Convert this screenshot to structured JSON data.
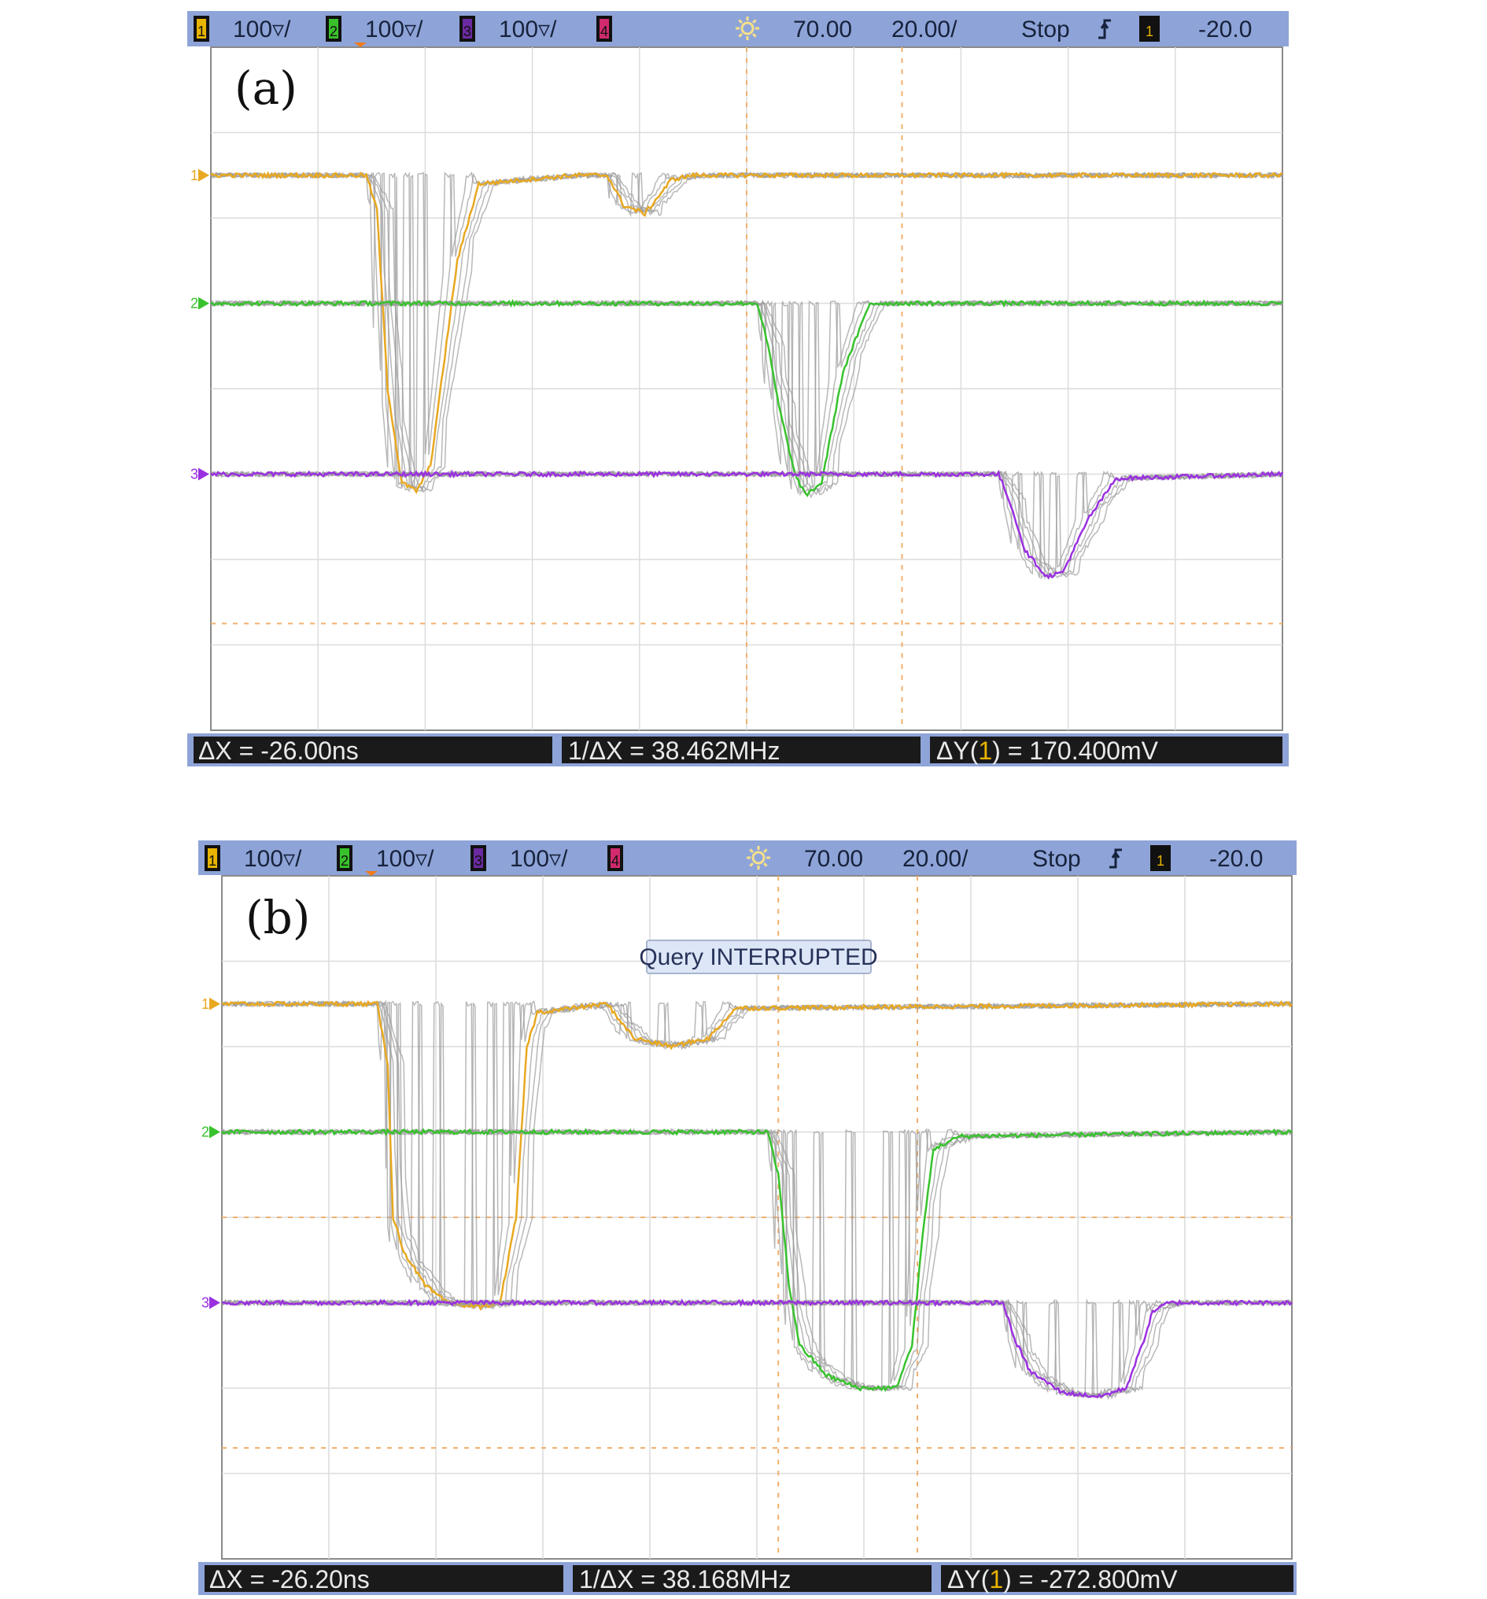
{
  "chart_data": [
    {
      "type": "line",
      "panel_label": "(a)",
      "status_bar": {
        "channels": [
          {
            "number": "1",
            "scale": "100▿/",
            "color": "#e8b400"
          },
          {
            "number": "2",
            "scale": "100▿/",
            "color": "#39c12b"
          },
          {
            "number": "3",
            "scale": "100▿/",
            "color": "#6b2aa1"
          },
          {
            "number": "4",
            "scale": "",
            "color": "#d12a6e"
          }
        ],
        "time_offset": "70.00",
        "time_scale": "20.00/",
        "run_state": "Stop",
        "trigger_channel": "1",
        "trigger_level": "-20.0"
      },
      "measurements": {
        "delta_x": "ΔX = -26.00ns",
        "inverse_delta_x": "1/ΔX = 38.462MHz",
        "delta_y_prefix": "ΔY(",
        "delta_y_channel": "1",
        "delta_y_suffix": ") = 170.400mV"
      },
      "xlim": [
        0,
        10
      ],
      "ylim": [
        -4,
        4
      ],
      "grid": true,
      "cursors": {
        "x": [
          5.0,
          6.45
        ],
        "y": [
          -2.75
        ]
      },
      "series": [
        {
          "channel": "1",
          "color": "#e8a820",
          "ghost_color": "#9a9a9a",
          "baseline": 2.5,
          "points": [
            [
              0,
              2.5
            ],
            [
              1.45,
              2.5
            ],
            [
              1.55,
              2.1
            ],
            [
              1.65,
              0.0
            ],
            [
              1.78,
              -1.1
            ],
            [
              1.92,
              -1.2
            ],
            [
              2.05,
              -0.9
            ],
            [
              2.3,
              1.5
            ],
            [
              2.5,
              2.4
            ],
            [
              3.4,
              2.5
            ],
            [
              3.7,
              2.5
            ],
            [
              3.85,
              2.15
            ],
            [
              4.05,
              2.05
            ],
            [
              4.3,
              2.45
            ],
            [
              4.5,
              2.5
            ],
            [
              10,
              2.5
            ]
          ]
        },
        {
          "channel": "2",
          "color": "#38c22d",
          "ghost_color": "#9a9a9a",
          "baseline": 1.0,
          "points": [
            [
              0,
              1.0
            ],
            [
              5.1,
              1.0
            ],
            [
              5.2,
              0.5
            ],
            [
              5.3,
              -0.2
            ],
            [
              5.45,
              -1.0
            ],
            [
              5.55,
              -1.25
            ],
            [
              5.7,
              -1.1
            ],
            [
              5.9,
              0.2
            ],
            [
              6.15,
              1.0
            ],
            [
              10,
              1.0
            ]
          ]
        },
        {
          "channel": "3",
          "color": "#9a30e0",
          "ghost_color": "#9a9a9a",
          "baseline": -1.0,
          "points": [
            [
              0,
              -1.0
            ],
            [
              7.35,
              -1.0
            ],
            [
              7.45,
              -1.3
            ],
            [
              7.6,
              -1.9
            ],
            [
              7.8,
              -2.2
            ],
            [
              7.95,
              -2.15
            ],
            [
              8.2,
              -1.5
            ],
            [
              8.45,
              -1.05
            ],
            [
              10,
              -1.0
            ]
          ]
        }
      ]
    },
    {
      "type": "line",
      "panel_label": "(b)",
      "status_bar": {
        "channels": [
          {
            "number": "1",
            "scale": "100▿/",
            "color": "#e8b400"
          },
          {
            "number": "2",
            "scale": "100▿/",
            "color": "#39c12b"
          },
          {
            "number": "3",
            "scale": "100▿/",
            "color": "#6b2aa1"
          },
          {
            "number": "4",
            "scale": "",
            "color": "#d12a6e"
          }
        ],
        "time_offset": "70.00",
        "time_scale": "20.00/",
        "run_state": "Stop",
        "trigger_channel": "1",
        "trigger_level": "-20.0"
      },
      "message": "Query INTERRUPTED",
      "measurements": {
        "delta_x": "ΔX = -26.20ns",
        "inverse_delta_x": "1/ΔX = 38.168MHz",
        "delta_y_prefix": "ΔY(",
        "delta_y_channel": "1",
        "delta_y_suffix": ") = -272.800mV"
      },
      "xlim": [
        0,
        10
      ],
      "ylim": [
        -4,
        4
      ],
      "grid": true,
      "cursors": {
        "x": [
          5.2,
          6.5
        ],
        "y": [
          0.0,
          -2.7
        ]
      },
      "series": [
        {
          "channel": "1",
          "color": "#e8a820",
          "ghost_color": "#9a9a9a",
          "baseline": 2.5,
          "points": [
            [
              0,
              2.5
            ],
            [
              1.45,
              2.5
            ],
            [
              1.55,
              1.8
            ],
            [
              1.6,
              0.0
            ],
            [
              1.7,
              -0.4
            ],
            [
              1.9,
              -0.8
            ],
            [
              2.1,
              -1.0
            ],
            [
              2.4,
              -1.05
            ],
            [
              2.6,
              -1.0
            ],
            [
              2.75,
              0.0
            ],
            [
              2.85,
              2.0
            ],
            [
              2.95,
              2.4
            ],
            [
              3.6,
              2.5
            ],
            [
              3.85,
              2.1
            ],
            [
              4.2,
              2.0
            ],
            [
              4.55,
              2.1
            ],
            [
              4.8,
              2.45
            ],
            [
              10,
              2.5
            ]
          ]
        },
        {
          "channel": "2",
          "color": "#38c22d",
          "ghost_color": "#9a9a9a",
          "baseline": 1.0,
          "points": [
            [
              0,
              1.0
            ],
            [
              5.1,
              1.0
            ],
            [
              5.2,
              0.5
            ],
            [
              5.3,
              -0.8
            ],
            [
              5.4,
              -1.5
            ],
            [
              5.65,
              -1.85
            ],
            [
              5.95,
              -2.0
            ],
            [
              6.3,
              -2.0
            ],
            [
              6.45,
              -1.5
            ],
            [
              6.55,
              -0.2
            ],
            [
              6.65,
              0.8
            ],
            [
              6.9,
              0.95
            ],
            [
              10,
              1.0
            ]
          ]
        },
        {
          "channel": "3",
          "color": "#9a30e0",
          "ghost_color": "#9a9a9a",
          "baseline": -1.0,
          "points": [
            [
              0,
              -1.0
            ],
            [
              7.3,
              -1.0
            ],
            [
              7.4,
              -1.4
            ],
            [
              7.55,
              -1.8
            ],
            [
              7.85,
              -2.05
            ],
            [
              8.2,
              -2.1
            ],
            [
              8.45,
              -2.0
            ],
            [
              8.6,
              -1.5
            ],
            [
              8.7,
              -1.1
            ],
            [
              8.85,
              -1.0
            ],
            [
              10,
              -1.0
            ]
          ]
        }
      ]
    }
  ]
}
